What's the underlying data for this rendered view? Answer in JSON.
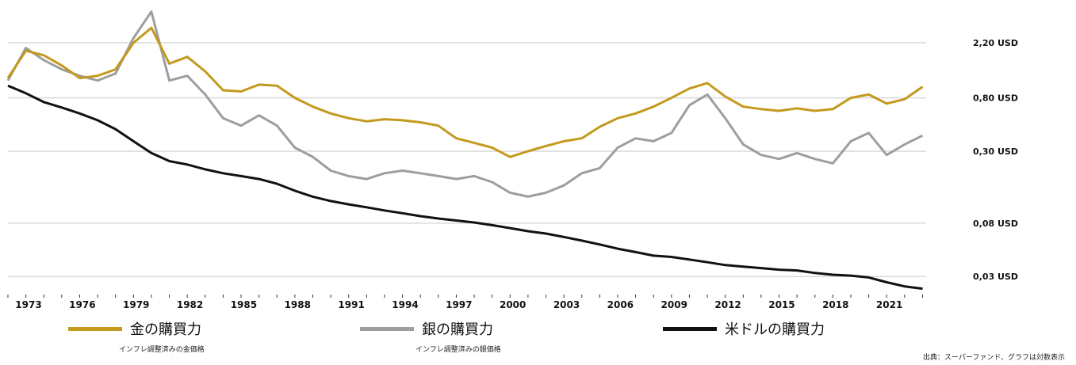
{
  "colors": {
    "gold": "#c39a1e",
    "silver": "#9e9e9e",
    "dollar": "#111111",
    "grid": "#d9d9d9"
  },
  "legend": {
    "gold": {
      "label": "金の購買力",
      "sub": "インフレ調整済みの金価格"
    },
    "silver": {
      "label": "銀の購買力",
      "sub": "インフレ調整済みの銀価格"
    },
    "dollar": {
      "label": "米ドルの購買力"
    }
  },
  "source": "出典：スーパーファンド、グラフは対数表示",
  "chart_data": {
    "type": "line",
    "title": "",
    "xlabel": "",
    "ylabel": "",
    "yscale": "log",
    "grid": true,
    "legend_position": "bottom",
    "x_ticks": [
      "1973",
      "1976",
      "1979",
      "1982",
      "1985",
      "1988",
      "1991",
      "1994",
      "1997",
      "2000",
      "2003",
      "2006",
      "2009",
      "2012",
      "2015",
      "2018",
      "2021"
    ],
    "y_ticks": [
      {
        "value": 2.2,
        "label": "2,20",
        "unit": "USD"
      },
      {
        "value": 0.8,
        "label": "0,80",
        "unit": "USD"
      },
      {
        "value": 0.3,
        "label": "0,30",
        "unit": "USD"
      },
      {
        "value": 0.08,
        "label": "0,08",
        "unit": "USD"
      },
      {
        "value": 0.03,
        "label": "0,03",
        "unit": "USD"
      }
    ],
    "series": [
      {
        "name": "金の購買力",
        "color": "#c39a1e",
        "x": [
          1972,
          1973,
          1974,
          1975,
          1976,
          1977,
          1978,
          1979,
          1980,
          1981,
          1982,
          1983,
          1984,
          1985,
          1986,
          1987,
          1988,
          1989,
          1990,
          1991,
          1992,
          1993,
          1994,
          1995,
          1996,
          1997,
          1998,
          1999,
          2000,
          2001,
          2002,
          2003,
          2004,
          2005,
          2006,
          2007,
          2008,
          2009,
          2010,
          2011,
          2012,
          2013,
          2014,
          2015,
          2016,
          2017,
          2018,
          2019,
          2020,
          2021,
          2022,
          2023
        ],
        "y": [
          1.15,
          1.9,
          1.75,
          1.45,
          1.15,
          1.2,
          1.35,
          2.2,
          2.9,
          1.5,
          1.7,
          1.3,
          0.92,
          0.9,
          1.02,
          1.0,
          0.8,
          0.68,
          0.6,
          0.55,
          0.52,
          0.54,
          0.53,
          0.51,
          0.48,
          0.38,
          0.35,
          0.32,
          0.27,
          0.3,
          0.33,
          0.36,
          0.38,
          0.47,
          0.55,
          0.6,
          0.68,
          0.8,
          0.95,
          1.05,
          0.82,
          0.68,
          0.65,
          0.63,
          0.66,
          0.63,
          0.65,
          0.8,
          0.85,
          0.72,
          0.78,
          0.98
        ]
      },
      {
        "name": "銀の購買力",
        "color": "#9e9e9e",
        "x": [
          1972,
          1973,
          1974,
          1975,
          1976,
          1977,
          1978,
          1979,
          1980,
          1981,
          1982,
          1983,
          1984,
          1985,
          1986,
          1987,
          1988,
          1989,
          1990,
          1991,
          1992,
          1993,
          1994,
          1995,
          1996,
          1997,
          1998,
          1999,
          2000,
          2001,
          2002,
          2003,
          2004,
          2005,
          2006,
          2007,
          2008,
          2009,
          2010,
          2011,
          2012,
          2013,
          2014,
          2015,
          2016,
          2017,
          2018,
          2019,
          2020,
          2021,
          2022,
          2023
        ],
        "y": [
          1.1,
          2.0,
          1.6,
          1.35,
          1.2,
          1.1,
          1.25,
          2.4,
          3.9,
          1.1,
          1.2,
          0.85,
          0.55,
          0.48,
          0.58,
          0.48,
          0.32,
          0.27,
          0.21,
          0.19,
          0.18,
          0.2,
          0.21,
          0.2,
          0.19,
          0.18,
          0.19,
          0.17,
          0.14,
          0.13,
          0.14,
          0.16,
          0.2,
          0.22,
          0.32,
          0.38,
          0.36,
          0.42,
          0.7,
          0.85,
          0.55,
          0.34,
          0.28,
          0.26,
          0.29,
          0.26,
          0.24,
          0.36,
          0.42,
          0.28,
          0.34,
          0.4
        ]
      },
      {
        "name": "米ドルの購買力",
        "color": "#111111",
        "x": [
          1972,
          1973,
          1974,
          1975,
          1976,
          1977,
          1978,
          1979,
          1980,
          1981,
          1982,
          1983,
          1984,
          1985,
          1986,
          1987,
          1988,
          1989,
          1990,
          1991,
          1992,
          1993,
          1994,
          1995,
          1996,
          1997,
          1998,
          1999,
          2000,
          2001,
          2002,
          2003,
          2004,
          2005,
          2006,
          2007,
          2008,
          2009,
          2010,
          2011,
          2012,
          2013,
          2014,
          2015,
          2016,
          2017,
          2018,
          2019,
          2020,
          2021,
          2022,
          2023
        ],
        "y": [
          1.0,
          0.87,
          0.74,
          0.67,
          0.6,
          0.53,
          0.45,
          0.36,
          0.29,
          0.25,
          0.235,
          0.215,
          0.2,
          0.19,
          0.18,
          0.165,
          0.145,
          0.13,
          0.12,
          0.113,
          0.107,
          0.101,
          0.096,
          0.091,
          0.087,
          0.084,
          0.081,
          0.077,
          0.073,
          0.069,
          0.066,
          0.062,
          0.058,
          0.054,
          0.05,
          0.047,
          0.044,
          0.043,
          0.041,
          0.039,
          0.037,
          0.036,
          0.035,
          0.034,
          0.0335,
          0.032,
          0.031,
          0.0305,
          0.0295,
          0.027,
          0.025,
          0.024
        ]
      }
    ]
  }
}
